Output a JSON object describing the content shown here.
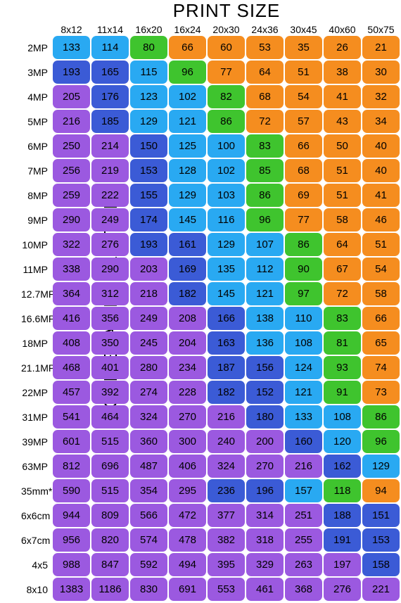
{
  "title": "PRINT SIZE",
  "y_axis_title": "CAMERA RESOLUTION",
  "title_fontsize": 26,
  "y_axis_title_fontsize": 26,
  "header_fontsize": 14,
  "row_label_fontsize": 14,
  "cell_fontsize": 15,
  "background_color": "#ffffff",
  "cell_border_radius": 7,
  "colors": {
    "ltblue": "#29a9f2",
    "blue": "#3b5bd6",
    "green": "#3fc42e",
    "orange": "#f58d1f",
    "purple": "#9b59e0"
  },
  "columns": [
    "8x12",
    "11x14",
    "16x20",
    "16x24",
    "20x30",
    "24x36",
    "30x45",
    "40x60",
    "50x75"
  ],
  "rows": [
    {
      "label": "2MP",
      "cells": [
        {
          "v": "133",
          "c": "ltblue"
        },
        {
          "v": "114",
          "c": "ltblue"
        },
        {
          "v": "80",
          "c": "green"
        },
        {
          "v": "66",
          "c": "orange"
        },
        {
          "v": "60",
          "c": "orange"
        },
        {
          "v": "53",
          "c": "orange"
        },
        {
          "v": "35",
          "c": "orange"
        },
        {
          "v": "26",
          "c": "orange"
        },
        {
          "v": "21",
          "c": "orange"
        }
      ]
    },
    {
      "label": "3MP",
      "cells": [
        {
          "v": "193",
          "c": "blue"
        },
        {
          "v": "165",
          "c": "blue"
        },
        {
          "v": "115",
          "c": "ltblue"
        },
        {
          "v": "96",
          "c": "green"
        },
        {
          "v": "77",
          "c": "orange"
        },
        {
          "v": "64",
          "c": "orange"
        },
        {
          "v": "51",
          "c": "orange"
        },
        {
          "v": "38",
          "c": "orange"
        },
        {
          "v": "30",
          "c": "orange"
        }
      ]
    },
    {
      "label": "4MP",
      "cells": [
        {
          "v": "205",
          "c": "purple"
        },
        {
          "v": "176",
          "c": "blue"
        },
        {
          "v": "123",
          "c": "ltblue"
        },
        {
          "v": "102",
          "c": "ltblue"
        },
        {
          "v": "82",
          "c": "green"
        },
        {
          "v": "68",
          "c": "orange"
        },
        {
          "v": "54",
          "c": "orange"
        },
        {
          "v": "41",
          "c": "orange"
        },
        {
          "v": "32",
          "c": "orange"
        }
      ]
    },
    {
      "label": "5MP",
      "cells": [
        {
          "v": "216",
          "c": "purple"
        },
        {
          "v": "185",
          "c": "blue"
        },
        {
          "v": "129",
          "c": "ltblue"
        },
        {
          "v": "121",
          "c": "ltblue"
        },
        {
          "v": "86",
          "c": "green"
        },
        {
          "v": "72",
          "c": "orange"
        },
        {
          "v": "57",
          "c": "orange"
        },
        {
          "v": "43",
          "c": "orange"
        },
        {
          "v": "34",
          "c": "orange"
        }
      ]
    },
    {
      "label": "6MP",
      "cells": [
        {
          "v": "250",
          "c": "purple"
        },
        {
          "v": "214",
          "c": "purple"
        },
        {
          "v": "150",
          "c": "blue"
        },
        {
          "v": "125",
          "c": "ltblue"
        },
        {
          "v": "100",
          "c": "ltblue"
        },
        {
          "v": "83",
          "c": "green"
        },
        {
          "v": "66",
          "c": "orange"
        },
        {
          "v": "50",
          "c": "orange"
        },
        {
          "v": "40",
          "c": "orange"
        }
      ]
    },
    {
      "label": "7MP",
      "cells": [
        {
          "v": "256",
          "c": "purple"
        },
        {
          "v": "219",
          "c": "purple"
        },
        {
          "v": "153",
          "c": "blue"
        },
        {
          "v": "128",
          "c": "ltblue"
        },
        {
          "v": "102",
          "c": "ltblue"
        },
        {
          "v": "85",
          "c": "green"
        },
        {
          "v": "68",
          "c": "orange"
        },
        {
          "v": "51",
          "c": "orange"
        },
        {
          "v": "40",
          "c": "orange"
        }
      ]
    },
    {
      "label": "8MP",
      "cells": [
        {
          "v": "259",
          "c": "purple"
        },
        {
          "v": "222",
          "c": "purple"
        },
        {
          "v": "155",
          "c": "blue"
        },
        {
          "v": "129",
          "c": "ltblue"
        },
        {
          "v": "103",
          "c": "ltblue"
        },
        {
          "v": "86",
          "c": "green"
        },
        {
          "v": "69",
          "c": "orange"
        },
        {
          "v": "51",
          "c": "orange"
        },
        {
          "v": "41",
          "c": "orange"
        }
      ]
    },
    {
      "label": "9MP",
      "cells": [
        {
          "v": "290",
          "c": "purple"
        },
        {
          "v": "249",
          "c": "purple"
        },
        {
          "v": "174",
          "c": "blue"
        },
        {
          "v": "145",
          "c": "ltblue"
        },
        {
          "v": "116",
          "c": "ltblue"
        },
        {
          "v": "96",
          "c": "green"
        },
        {
          "v": "77",
          "c": "orange"
        },
        {
          "v": "58",
          "c": "orange"
        },
        {
          "v": "46",
          "c": "orange"
        }
      ]
    },
    {
      "label": "10MP",
      "cells": [
        {
          "v": "322",
          "c": "purple"
        },
        {
          "v": "276",
          "c": "purple"
        },
        {
          "v": "193",
          "c": "blue"
        },
        {
          "v": "161",
          "c": "blue"
        },
        {
          "v": "129",
          "c": "ltblue"
        },
        {
          "v": "107",
          "c": "ltblue"
        },
        {
          "v": "86",
          "c": "green"
        },
        {
          "v": "64",
          "c": "orange"
        },
        {
          "v": "51",
          "c": "orange"
        }
      ]
    },
    {
      "label": "11MP",
      "cells": [
        {
          "v": "338",
          "c": "purple"
        },
        {
          "v": "290",
          "c": "purple"
        },
        {
          "v": "203",
          "c": "purple"
        },
        {
          "v": "169",
          "c": "blue"
        },
        {
          "v": "135",
          "c": "ltblue"
        },
        {
          "v": "112",
          "c": "ltblue"
        },
        {
          "v": "90",
          "c": "green"
        },
        {
          "v": "67",
          "c": "orange"
        },
        {
          "v": "54",
          "c": "orange"
        }
      ]
    },
    {
      "label": "12.7MP",
      "cells": [
        {
          "v": "364",
          "c": "purple"
        },
        {
          "v": "312",
          "c": "purple"
        },
        {
          "v": "218",
          "c": "purple"
        },
        {
          "v": "182",
          "c": "blue"
        },
        {
          "v": "145",
          "c": "ltblue"
        },
        {
          "v": "121",
          "c": "ltblue"
        },
        {
          "v": "97",
          "c": "green"
        },
        {
          "v": "72",
          "c": "orange"
        },
        {
          "v": "58",
          "c": "orange"
        }
      ]
    },
    {
      "label": "16.6MP",
      "cells": [
        {
          "v": "416",
          "c": "purple"
        },
        {
          "v": "356",
          "c": "purple"
        },
        {
          "v": "249",
          "c": "purple"
        },
        {
          "v": "208",
          "c": "purple"
        },
        {
          "v": "166",
          "c": "blue"
        },
        {
          "v": "138",
          "c": "ltblue"
        },
        {
          "v": "110",
          "c": "ltblue"
        },
        {
          "v": "83",
          "c": "green"
        },
        {
          "v": "66",
          "c": "orange"
        }
      ]
    },
    {
      "label": "18MP",
      "cells": [
        {
          "v": "408",
          "c": "purple"
        },
        {
          "v": "350",
          "c": "purple"
        },
        {
          "v": "245",
          "c": "purple"
        },
        {
          "v": "204",
          "c": "purple"
        },
        {
          "v": "163",
          "c": "blue"
        },
        {
          "v": "136",
          "c": "ltblue"
        },
        {
          "v": "108",
          "c": "ltblue"
        },
        {
          "v": "81",
          "c": "green"
        },
        {
          "v": "65",
          "c": "orange"
        }
      ]
    },
    {
      "label": "21.1MP",
      "cells": [
        {
          "v": "468",
          "c": "purple"
        },
        {
          "v": "401",
          "c": "purple"
        },
        {
          "v": "280",
          "c": "purple"
        },
        {
          "v": "234",
          "c": "purple"
        },
        {
          "v": "187",
          "c": "blue"
        },
        {
          "v": "156",
          "c": "blue"
        },
        {
          "v": "124",
          "c": "ltblue"
        },
        {
          "v": "93",
          "c": "green"
        },
        {
          "v": "74",
          "c": "orange"
        }
      ]
    },
    {
      "label": "22MP",
      "cells": [
        {
          "v": "457",
          "c": "purple"
        },
        {
          "v": "392",
          "c": "purple"
        },
        {
          "v": "274",
          "c": "purple"
        },
        {
          "v": "228",
          "c": "purple"
        },
        {
          "v": "182",
          "c": "blue"
        },
        {
          "v": "152",
          "c": "blue"
        },
        {
          "v": "121",
          "c": "ltblue"
        },
        {
          "v": "91",
          "c": "green"
        },
        {
          "v": "73",
          "c": "orange"
        }
      ]
    },
    {
      "label": "31MP",
      "cells": [
        {
          "v": "541",
          "c": "purple"
        },
        {
          "v": "464",
          "c": "purple"
        },
        {
          "v": "324",
          "c": "purple"
        },
        {
          "v": "270",
          "c": "purple"
        },
        {
          "v": "216",
          "c": "purple"
        },
        {
          "v": "180",
          "c": "blue"
        },
        {
          "v": "133",
          "c": "ltblue"
        },
        {
          "v": "108",
          "c": "ltblue"
        },
        {
          "v": "86",
          "c": "green"
        }
      ]
    },
    {
      "label": "39MP",
      "cells": [
        {
          "v": "601",
          "c": "purple"
        },
        {
          "v": "515",
          "c": "purple"
        },
        {
          "v": "360",
          "c": "purple"
        },
        {
          "v": "300",
          "c": "purple"
        },
        {
          "v": "240",
          "c": "purple"
        },
        {
          "v": "200",
          "c": "purple"
        },
        {
          "v": "160",
          "c": "blue"
        },
        {
          "v": "120",
          "c": "ltblue"
        },
        {
          "v": "96",
          "c": "green"
        }
      ]
    },
    {
      "label": "63MP",
      "cells": [
        {
          "v": "812",
          "c": "purple"
        },
        {
          "v": "696",
          "c": "purple"
        },
        {
          "v": "487",
          "c": "purple"
        },
        {
          "v": "406",
          "c": "purple"
        },
        {
          "v": "324",
          "c": "purple"
        },
        {
          "v": "270",
          "c": "purple"
        },
        {
          "v": "216",
          "c": "purple"
        },
        {
          "v": "162",
          "c": "blue"
        },
        {
          "v": "129",
          "c": "ltblue"
        }
      ]
    },
    {
      "label": "35mm*",
      "cells": [
        {
          "v": "590",
          "c": "purple"
        },
        {
          "v": "515",
          "c": "purple"
        },
        {
          "v": "354",
          "c": "purple"
        },
        {
          "v": "295",
          "c": "purple"
        },
        {
          "v": "236",
          "c": "blue"
        },
        {
          "v": "196",
          "c": "blue"
        },
        {
          "v": "157",
          "c": "ltblue"
        },
        {
          "v": "118",
          "c": "green"
        },
        {
          "v": "94",
          "c": "orange"
        }
      ]
    },
    {
      "label": "6x6cm",
      "cells": [
        {
          "v": "944",
          "c": "purple"
        },
        {
          "v": "809",
          "c": "purple"
        },
        {
          "v": "566",
          "c": "purple"
        },
        {
          "v": "472",
          "c": "purple"
        },
        {
          "v": "377",
          "c": "purple"
        },
        {
          "v": "314",
          "c": "purple"
        },
        {
          "v": "251",
          "c": "purple"
        },
        {
          "v": "188",
          "c": "blue"
        },
        {
          "v": "151",
          "c": "blue"
        }
      ]
    },
    {
      "label": "6x7cm",
      "cells": [
        {
          "v": "956",
          "c": "purple"
        },
        {
          "v": "820",
          "c": "purple"
        },
        {
          "v": "574",
          "c": "purple"
        },
        {
          "v": "478",
          "c": "purple"
        },
        {
          "v": "382",
          "c": "purple"
        },
        {
          "v": "318",
          "c": "purple"
        },
        {
          "v": "255",
          "c": "purple"
        },
        {
          "v": "191",
          "c": "blue"
        },
        {
          "v": "153",
          "c": "blue"
        }
      ]
    },
    {
      "label": "4x5",
      "cells": [
        {
          "v": "988",
          "c": "purple"
        },
        {
          "v": "847",
          "c": "purple"
        },
        {
          "v": "592",
          "c": "purple"
        },
        {
          "v": "494",
          "c": "purple"
        },
        {
          "v": "395",
          "c": "purple"
        },
        {
          "v": "329",
          "c": "purple"
        },
        {
          "v": "263",
          "c": "purple"
        },
        {
          "v": "197",
          "c": "purple"
        },
        {
          "v": "158",
          "c": "blue"
        }
      ]
    },
    {
      "label": "8x10",
      "cells": [
        {
          "v": "1383",
          "c": "purple"
        },
        {
          "v": "1186",
          "c": "purple"
        },
        {
          "v": "830",
          "c": "purple"
        },
        {
          "v": "691",
          "c": "purple"
        },
        {
          "v": "553",
          "c": "purple"
        },
        {
          "v": "461",
          "c": "purple"
        },
        {
          "v": "368",
          "c": "purple"
        },
        {
          "v": "276",
          "c": "purple"
        },
        {
          "v": "221",
          "c": "purple"
        }
      ]
    }
  ]
}
